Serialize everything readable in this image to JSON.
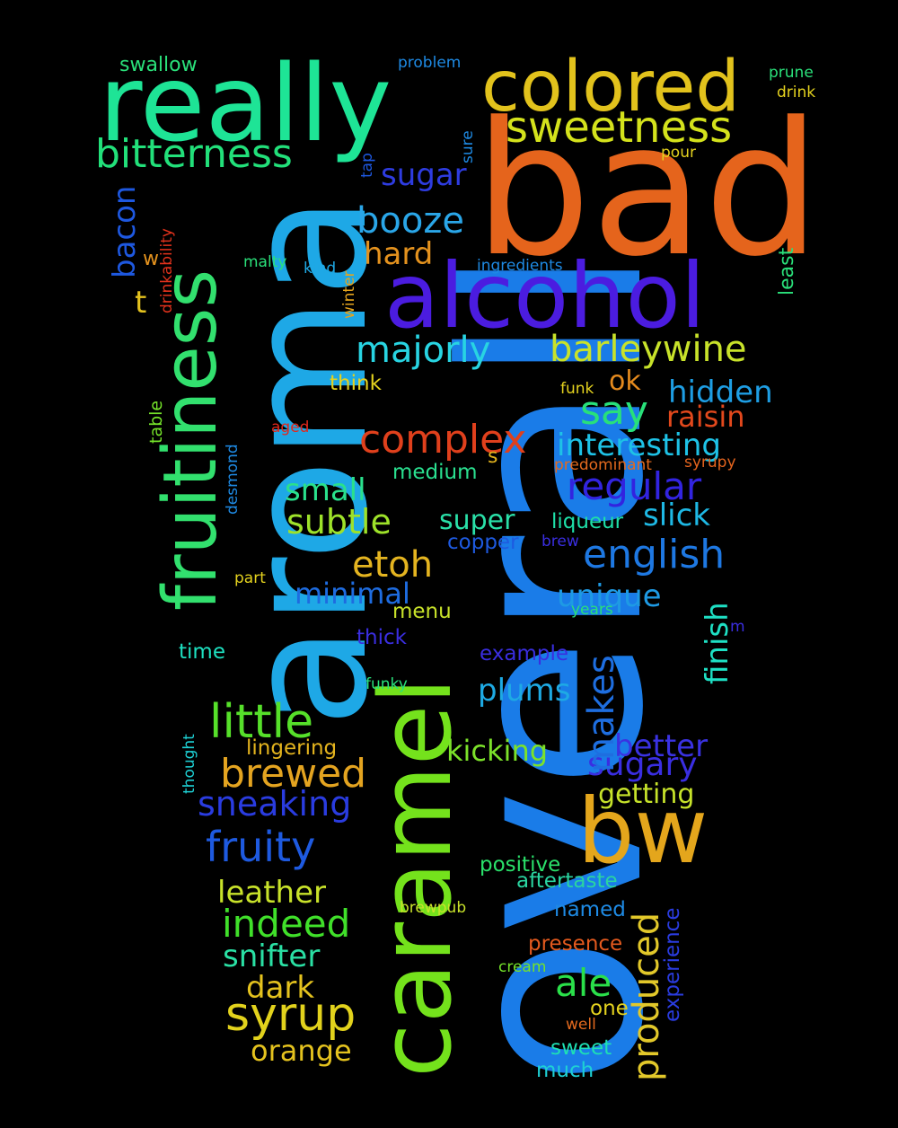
{
  "words": [
    {
      "text": "overall",
      "color": "#1a7ce8"
    },
    {
      "text": "bad",
      "color": "#e5641c"
    },
    {
      "text": "aroma",
      "color": "#1ea8e6"
    },
    {
      "text": "really",
      "color": "#1ee496"
    },
    {
      "text": "caramel",
      "color": "#74e21c"
    },
    {
      "text": "alcohol",
      "color": "#4b1ce0"
    },
    {
      "text": "fruitiness",
      "color": "#32e06e"
    },
    {
      "text": "colored",
      "color": "#e2c21c"
    },
    {
      "text": "bw",
      "color": "#e4a61c"
    },
    {
      "text": "sweetness",
      "color": "#d4e21c"
    },
    {
      "text": "bitterness",
      "color": "#22e07a"
    },
    {
      "text": "little",
      "color": "#56e02a"
    },
    {
      "text": "booze",
      "color": "#2aa6e8"
    },
    {
      "text": "barleywine",
      "color": "#c8e22a"
    },
    {
      "text": "majorly",
      "color": "#28d4e2"
    },
    {
      "text": "complex",
      "color": "#e0401c"
    },
    {
      "text": "syrup",
      "color": "#e2d21c"
    },
    {
      "text": "english",
      "color": "#1e78e2"
    },
    {
      "text": "fruity",
      "color": "#1e5ae0"
    },
    {
      "text": "brewed",
      "color": "#e4a420"
    },
    {
      "text": "indeed",
      "color": "#40e02a"
    },
    {
      "text": "regular",
      "color": "#3224e0"
    },
    {
      "text": "interesting",
      "color": "#1ec2e6"
    },
    {
      "text": "sugary",
      "color": "#3a2ee2"
    },
    {
      "text": "say",
      "color": "#28e07a"
    },
    {
      "text": "subtle",
      "color": "#9ee22a"
    },
    {
      "text": "makes",
      "color": "#1e6ee0"
    },
    {
      "text": "produced",
      "color": "#e2c82a"
    },
    {
      "text": "etoh",
      "color": "#e4b420"
    },
    {
      "text": "sugar",
      "color": "#2e3ce0"
    },
    {
      "text": "better",
      "color": "#3a32e2"
    },
    {
      "text": "hidden",
      "color": "#1e9ee4"
    },
    {
      "text": "leather",
      "color": "#c8e22a"
    },
    {
      "text": "ale",
      "color": "#2ae04a"
    },
    {
      "text": "sneaking",
      "color": "#2a3ce0"
    },
    {
      "text": "unique",
      "color": "#1e9ae4"
    },
    {
      "text": "snifter",
      "color": "#2ae0a4"
    },
    {
      "text": "plums",
      "color": "#1eaae4"
    },
    {
      "text": "slick",
      "color": "#1eb8e4"
    },
    {
      "text": "finish",
      "color": "#1ee0c4"
    },
    {
      "text": "hard",
      "color": "#e4921e"
    },
    {
      "text": "raisin",
      "color": "#e2481c"
    },
    {
      "text": "kicking",
      "color": "#7ce22a"
    },
    {
      "text": "orange",
      "color": "#e4c21e"
    },
    {
      "text": "bacon",
      "color": "#1e58e0"
    },
    {
      "text": "small",
      "color": "#2ae08c"
    },
    {
      "text": "minimal",
      "color": "#1e6ce0"
    },
    {
      "text": "dark",
      "color": "#e4c21e"
    },
    {
      "text": "super",
      "color": "#2ae0a8"
    },
    {
      "text": "getting",
      "color": "#c6e22a"
    },
    {
      "text": "ok",
      "color": "#e48a1e"
    },
    {
      "text": "t",
      "color": "#e4c21e"
    },
    {
      "text": "swallow",
      "color": "#2ae07a"
    },
    {
      "text": "medium",
      "color": "#2ae090"
    },
    {
      "text": "think",
      "color": "#e4d21e"
    },
    {
      "text": "time",
      "color": "#1ee0c0"
    },
    {
      "text": "thick",
      "color": "#3a2ee0"
    },
    {
      "text": "liqueur",
      "color": "#1ee0a8"
    },
    {
      "text": "lingering",
      "color": "#e4b41e"
    },
    {
      "text": "example",
      "color": "#3a2ee0"
    },
    {
      "text": "named",
      "color": "#1e8ae4"
    },
    {
      "text": "positive",
      "color": "#2ae06a"
    },
    {
      "text": "aftertaste",
      "color": "#2ad4a0"
    },
    {
      "text": "presence",
      "color": "#e45a1e"
    },
    {
      "text": "menu",
      "color": "#c8e22a"
    },
    {
      "text": "copper",
      "color": "#1e5ae0"
    },
    {
      "text": "experience",
      "color": "#2a3ce0"
    },
    {
      "text": "sweet",
      "color": "#1ee0b4"
    },
    {
      "text": "much",
      "color": "#1ed0d4"
    },
    {
      "text": "one",
      "color": "#e4d21e"
    },
    {
      "text": "pour",
      "color": "#e4d21e"
    },
    {
      "text": "problem",
      "color": "#1e8ae4"
    },
    {
      "text": "prune",
      "color": "#2ae07a"
    },
    {
      "text": "drink",
      "color": "#e4d21e"
    },
    {
      "text": "ingredients",
      "color": "#1e8ae4"
    },
    {
      "text": "malty",
      "color": "#2ae07a"
    },
    {
      "text": "kind",
      "color": "#1ea8e4"
    },
    {
      "text": "w",
      "color": "#e4921e"
    },
    {
      "text": "drinkability",
      "color": "#e2321c"
    },
    {
      "text": "winter",
      "color": "#e4a41e"
    },
    {
      "text": "tap",
      "color": "#1e58e0"
    },
    {
      "text": "sure",
      "color": "#1e8ae4"
    },
    {
      "text": "least",
      "color": "#2ae07a"
    },
    {
      "text": "funk",
      "color": "#e4d21e"
    },
    {
      "text": "predominant",
      "color": "#e46a1e"
    },
    {
      "text": "syrupy",
      "color": "#e4641e"
    },
    {
      "text": "aged",
      "color": "#e2281c"
    },
    {
      "text": "s",
      "color": "#e4b41e"
    },
    {
      "text": "brew",
      "color": "#3a2ee0"
    },
    {
      "text": "desmond",
      "color": "#1e8ae4"
    },
    {
      "text": "table",
      "color": "#74e22a"
    },
    {
      "text": "part",
      "color": "#e4d21e"
    },
    {
      "text": "years",
      "color": "#2ae07a"
    },
    {
      "text": "m",
      "color": "#3a2ee0"
    },
    {
      "text": "funky",
      "color": "#2ae07a"
    },
    {
      "text": "thought",
      "color": "#1ed0d4"
    },
    {
      "text": "brewpub",
      "color": "#c8e22a"
    },
    {
      "text": "cream",
      "color": "#74e22a"
    },
    {
      "text": "well",
      "color": "#e46a1e"
    }
  ]
}
